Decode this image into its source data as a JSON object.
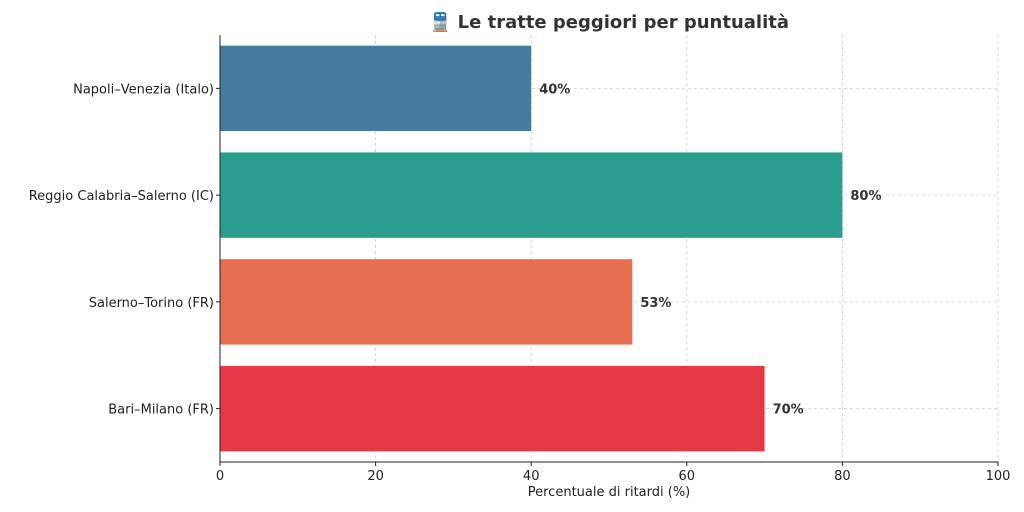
{
  "chart_data": {
    "type": "bar",
    "orientation": "horizontal",
    "title": "🚆 Le tratte peggiori per puntualità",
    "xlabel": "Percentuale di ritardi (%)",
    "ylabel": "",
    "categories": [
      "Napoli–Venezia (Italo)",
      "Reggio Calabria–Salerno (IC)",
      "Salerno–Torino (FR)",
      "Bari–Milano (FR)"
    ],
    "values": [
      40,
      80,
      53,
      70
    ],
    "value_labels": [
      "40%",
      "80%",
      "53%",
      "70%"
    ],
    "colors": [
      "#457b9d",
      "#2a9d8f",
      "#e76f51",
      "#e63946"
    ],
    "xlim": [
      0,
      100
    ],
    "xticks": [
      0,
      20,
      40,
      60,
      80,
      100
    ],
    "xtick_labels": [
      "0",
      "20",
      "40",
      "60",
      "80",
      "100"
    ],
    "grid": true,
    "legend": "none"
  }
}
